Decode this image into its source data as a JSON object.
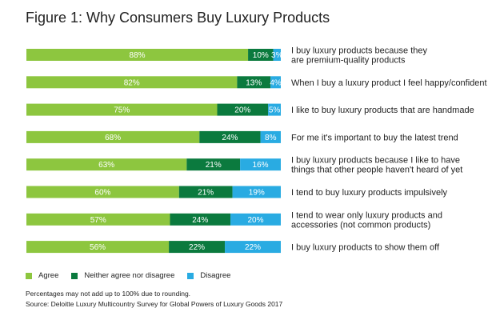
{
  "title": "Figure 1: Why Consumers Buy Luxury Products",
  "colors": {
    "agree": "#8dc63f",
    "neither": "#0b7a3e",
    "disagree": "#29abe2"
  },
  "chart_data": {
    "type": "bar",
    "orientation": "horizontal",
    "stacked": true,
    "categories": [
      [
        "I buy luxury products because they",
        "are premium-quality products"
      ],
      [
        "When I buy a luxury product I feel happy/confident"
      ],
      [
        "I like to buy luxury products that are handmade"
      ],
      [
        "For me it's important to buy the latest trend"
      ],
      [
        "I buy luxury products because I like to have",
        "things that other people haven't heard of yet"
      ],
      [
        "I tend to buy luxury products impulsively"
      ],
      [
        "I tend to wear only luxury products and",
        "accessories (not common products)"
      ],
      [
        "I buy luxury products to show them off"
      ]
    ],
    "series": [
      {
        "name": "Agree",
        "values": [
          88,
          82,
          75,
          68,
          63,
          60,
          57,
          56
        ],
        "labels": [
          "88%",
          "82%",
          "75%",
          "68%",
          "63%",
          "60%",
          "57%",
          "56%"
        ]
      },
      {
        "name": "Neither agree nor disagree",
        "values": [
          10,
          13,
          20,
          24,
          21,
          21,
          24,
          22
        ],
        "labels": [
          "10%",
          "13%",
          "20%",
          "24%",
          "21%",
          "21%",
          "24%",
          "22%"
        ]
      },
      {
        "name": "Disagree",
        "values": [
          3,
          4,
          5,
          8,
          16,
          19,
          20,
          22
        ],
        "labels": [
          "3%",
          "4%",
          "5%",
          "8%",
          "16%",
          "19%",
          "20%",
          "22%"
        ]
      }
    ],
    "xlim": [
      0,
      100
    ],
    "legend_position": "bottom-left",
    "grid": false
  },
  "notes": {
    "rounding": "Percentages may not add up to 100% due to rounding.",
    "source": "Source: Deloitte Luxury Multicountry Survey for Global Powers of Luxury Goods 2017"
  }
}
